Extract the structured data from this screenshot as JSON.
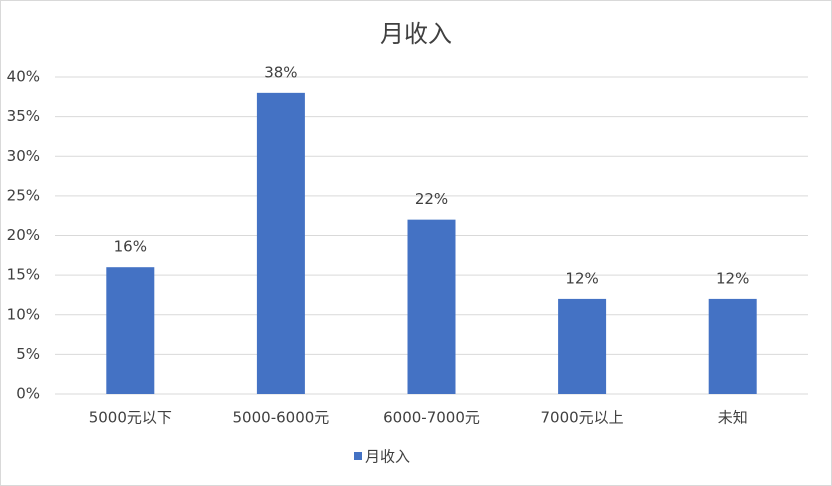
{
  "chart_data": {
    "type": "bar",
    "title": "月收入",
    "categories": [
      "5000元以下",
      "5000-6000元",
      "6000-7000元",
      "7000元以上",
      "未知"
    ],
    "series": [
      {
        "name": "月收入",
        "color": "#4472c4",
        "values": [
          16,
          38,
          22,
          12,
          12
        ],
        "value_labels": [
          "16%",
          "38%",
          "22%",
          "12%",
          "12%"
        ]
      }
    ],
    "ylim": [
      0,
      40
    ],
    "yticks": [
      {
        "value": 0,
        "label": "0%"
      },
      {
        "value": 5,
        "label": "5%"
      },
      {
        "value": 10,
        "label": "10%"
      },
      {
        "value": 15,
        "label": "15%"
      },
      {
        "value": 20,
        "label": "20%"
      },
      {
        "value": 25,
        "label": "25%"
      },
      {
        "value": 30,
        "label": "30%"
      },
      {
        "value": 35,
        "label": "35%"
      },
      {
        "value": 40,
        "label": "40%"
      }
    ],
    "grid": true,
    "legend": "bottom"
  }
}
